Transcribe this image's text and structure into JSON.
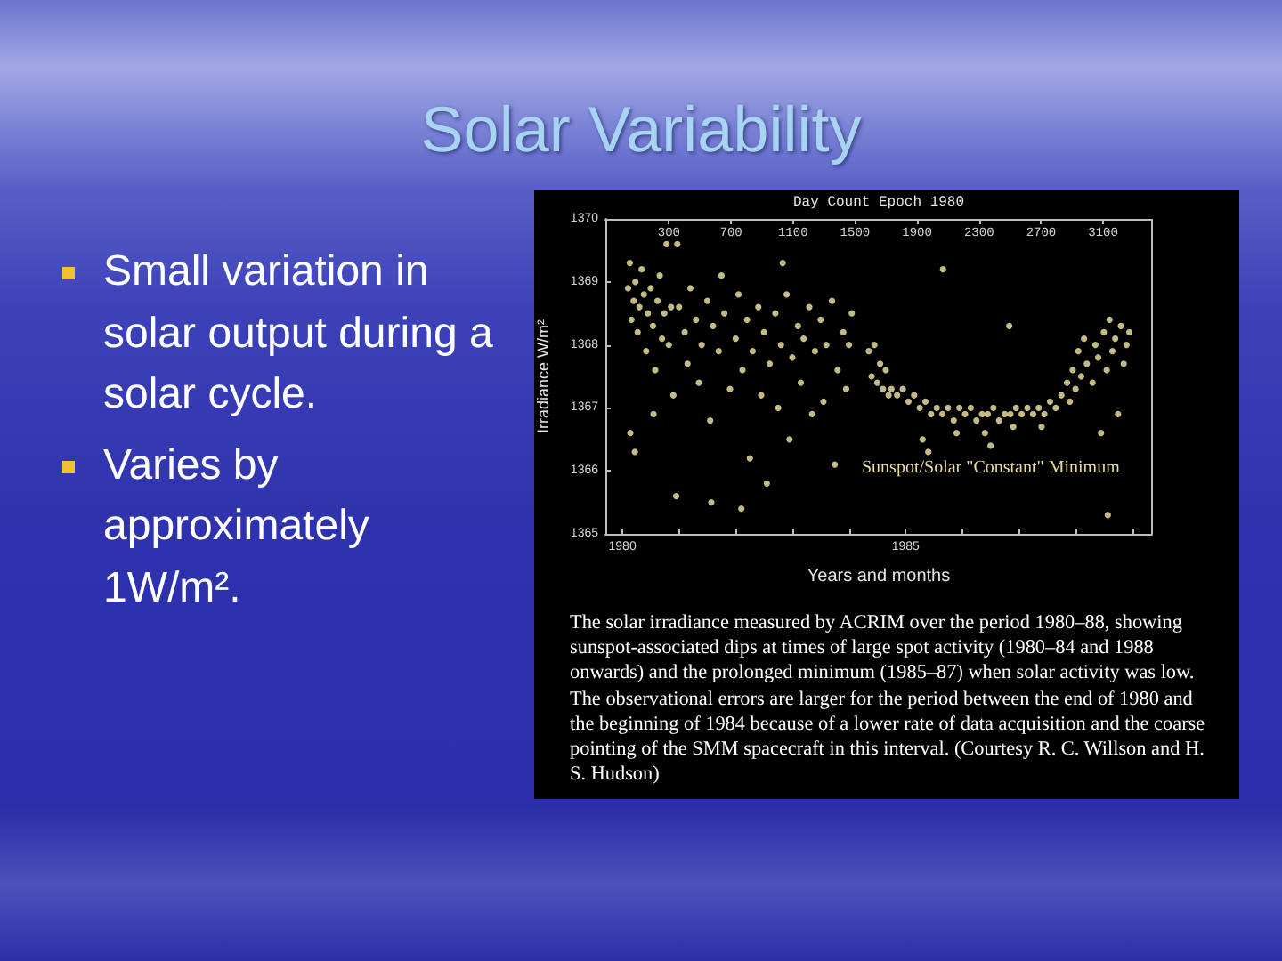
{
  "chart_data": {
    "type": "scatter",
    "title": "Solar Variability",
    "xlabel": "Years and months",
    "ylabel": "Irradiance W/m²",
    "x2label": "Day Count Epoch 1980",
    "annotations": [
      "Small variation in solar output during a solar cycle.",
      "Varies by approximately 1W/m².",
      "Sunspot/Solar \"Constant\" Minimum",
      "The solar irradiance measured by ACRIM over the period 1980–88, showing sunspot-associated dips at times of large spot activity (1980–84 and 1988 onwards) and the prolonged minimum (1985–87) when solar activity was low. The observational errors are larger for the period between the end of 1980 and the beginning of 1984 because of a lower rate of data acquisition and the coarse pointing of the SMM spacecraft in this interval. (Courtesy R. C. Willson and H. S. Hudson)"
    ],
    "series": [
      {
        "color": "#f2eaa8",
        "x": [
          1980.1,
          1980.13,
          1980.14,
          1980.16,
          1980.2,
          1980.22,
          1980.23,
          1980.27,
          1980.3,
          1980.34,
          1980.38,
          1980.42,
          1980.45,
          1980.5,
          1980.54,
          1980.55,
          1980.58,
          1980.62,
          1980.66,
          1980.7,
          1980.74,
          1980.78,
          1980.82,
          1980.86,
          1980.9,
          1980.95,
          1980.97,
          1981.0,
          1981.1,
          1981.15,
          1981.2,
          1981.3,
          1981.35,
          1981.4,
          1981.5,
          1981.55,
          1981.57,
          1981.6,
          1981.7,
          1981.75,
          1981.8,
          1981.9,
          1982.0,
          1982.05,
          1982.1,
          1982.12,
          1982.2,
          1982.25,
          1982.3,
          1982.4,
          1982.45,
          1982.5,
          1982.55,
          1982.6,
          1982.7,
          1982.75,
          1982.8,
          1982.83,
          1982.9,
          1982.95,
          1983.0,
          1983.1,
          1983.15,
          1983.2,
          1983.3,
          1983.35,
          1983.4,
          1983.5,
          1983.55,
          1983.6,
          1983.7,
          1983.75,
          1983.8,
          1983.9,
          1983.95,
          1984.0,
          1984.05,
          1984.35,
          1984.4,
          1984.45,
          1984.5,
          1984.55,
          1984.6,
          1984.65,
          1984.7,
          1984.75,
          1984.85,
          1984.95,
          1985.05,
          1985.15,
          1985.25,
          1985.3,
          1985.35,
          1985.4,
          1985.45,
          1985.55,
          1985.65,
          1985.66,
          1985.75,
          1985.85,
          1985.9,
          1985.95,
          1986.05,
          1986.15,
          1986.25,
          1986.35,
          1986.4,
          1986.45,
          1986.5,
          1986.55,
          1986.65,
          1986.75,
          1986.83,
          1986.85,
          1986.9,
          1986.95,
          1987.05,
          1987.15,
          1987.25,
          1987.35,
          1987.4,
          1987.45,
          1987.55,
          1987.65,
          1987.75,
          1987.85,
          1987.9,
          1987.95,
          1988.0,
          1988.05,
          1988.1,
          1988.15,
          1988.2,
          1988.3,
          1988.35,
          1988.4,
          1988.45,
          1988.5,
          1988.55,
          1988.57,
          1988.6,
          1988.65,
          1988.7,
          1988.75,
          1988.8,
          1988.85,
          1988.9,
          1988.95
        ],
        "values": [
          1368.9,
          1369.3,
          1366.6,
          1368.4,
          1368.7,
          1366.3,
          1369.0,
          1368.2,
          1368.6,
          1369.2,
          1368.8,
          1367.9,
          1368.5,
          1368.9,
          1368.3,
          1366.9,
          1367.6,
          1368.7,
          1369.1,
          1368.1,
          1368.5,
          1369.6,
          1368.0,
          1368.6,
          1367.2,
          1365.6,
          1369.6,
          1368.6,
          1368.2,
          1367.7,
          1368.9,
          1368.4,
          1367.4,
          1368.0,
          1368.7,
          1366.8,
          1365.5,
          1368.3,
          1367.9,
          1369.1,
          1368.5,
          1367.3,
          1368.1,
          1368.8,
          1365.4,
          1367.6,
          1368.4,
          1366.2,
          1367.9,
          1368.6,
          1367.2,
          1368.2,
          1365.8,
          1367.7,
          1368.5,
          1367.0,
          1368.0,
          1369.3,
          1368.8,
          1366.5,
          1367.8,
          1368.3,
          1367.4,
          1368.1,
          1368.6,
          1366.9,
          1367.9,
          1368.4,
          1367.1,
          1368.0,
          1368.7,
          1366.1,
          1367.6,
          1368.2,
          1367.3,
          1368.0,
          1368.5,
          1367.9,
          1367.5,
          1368.0,
          1367.4,
          1367.7,
          1367.3,
          1367.6,
          1367.2,
          1367.3,
          1367.2,
          1367.3,
          1367.1,
          1367.2,
          1367.0,
          1366.5,
          1367.1,
          1366.3,
          1366.9,
          1367.0,
          1366.9,
          1369.2,
          1367.0,
          1366.8,
          1366.6,
          1367.0,
          1366.9,
          1367.0,
          1366.8,
          1366.9,
          1366.6,
          1366.9,
          1366.4,
          1367.0,
          1366.8,
          1366.9,
          1368.3,
          1366.9,
          1366.7,
          1367.0,
          1366.9,
          1367.0,
          1366.9,
          1367.0,
          1366.7,
          1366.9,
          1367.1,
          1367.0,
          1367.2,
          1367.4,
          1367.1,
          1367.6,
          1367.3,
          1367.9,
          1367.5,
          1368.1,
          1367.7,
          1367.4,
          1368.0,
          1367.8,
          1366.6,
          1368.2,
          1367.6,
          1365.3,
          1368.4,
          1367.9,
          1368.1,
          1366.9,
          1368.3,
          1367.7,
          1368.0,
          1368.2
        ]
      }
    ],
    "marker": "circle",
    "grid": false,
    "xlim": [
      1979.7,
      1989.35
    ],
    "xticks": [
      1980,
      {
        "value": 1981,
        "label": null
      },
      {
        "value": 1982,
        "label": null
      },
      {
        "value": 1983,
        "label": null
      },
      {
        "value": 1984,
        "label": null
      },
      1985,
      {
        "value": 1986,
        "label": null
      },
      {
        "value": 1987,
        "label": null
      },
      {
        "value": 1988,
        "label": null
      },
      {
        "value": 1989,
        "label": null
      }
    ],
    "x2lim": [
      -110,
      3415
    ],
    "x2ticks": [
      300,
      700,
      1100,
      1500,
      1900,
      2300,
      2700,
      3100
    ],
    "ylim": [
      1365,
      1370
    ],
    "yticks": [
      1365,
      1366,
      1367,
      1368,
      1369,
      1370
    ]
  }
}
